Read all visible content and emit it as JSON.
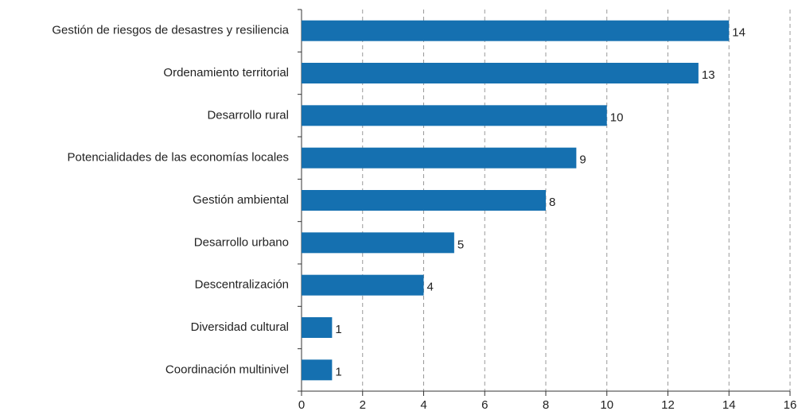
{
  "chart_data": {
    "type": "barh",
    "categories": [
      "Gestión de riesgos de desastres y resiliencia",
      "Ordenamiento territorial",
      "Desarrollo rural",
      "Potencialidades de las economías locales",
      "Gestión ambiental",
      "Desarrollo urbano",
      "Descentralización",
      "Diversidad cultural",
      "Coordinación multinivel"
    ],
    "values": [
      14,
      13,
      10,
      9,
      8,
      5,
      4,
      1,
      1
    ],
    "color": "#1570b0",
    "xlim": [
      0,
      16
    ],
    "xticks": [
      0,
      2,
      4,
      6,
      8,
      10,
      12,
      14,
      16
    ],
    "grid": true
  }
}
